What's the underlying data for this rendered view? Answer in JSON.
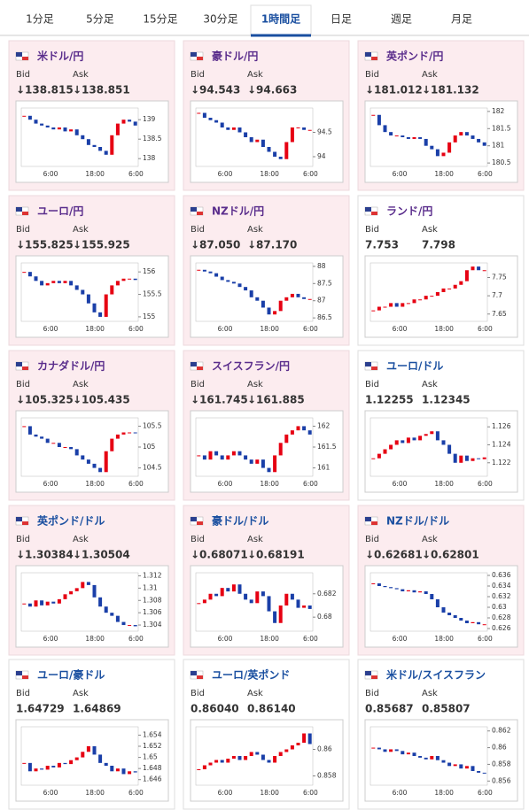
{
  "tabs": [
    "1分足",
    "5分足",
    "15分足",
    "30分足",
    "1時間足",
    "日足",
    "週足",
    "月足"
  ],
  "active_tab": 4,
  "labels": {
    "bid": "Bid",
    "ask": "Ask"
  },
  "cards": [
    {
      "name": "米ドル/円",
      "name_color": "#5a2d8c",
      "highlight": true,
      "bid": "↓138.815",
      "ask": "↓138.851",
      "chart": {
        "ylim": [
          137.8,
          139.3
        ],
        "yticks": [
          138,
          138.5,
          139
        ],
        "xlabels": [
          "6:00",
          "18:00",
          "6:00"
        ],
        "values": [
          139.1,
          139.0,
          138.9,
          138.85,
          138.8,
          138.75,
          138.8,
          138.7,
          138.75,
          138.6,
          138.5,
          138.35,
          138.3,
          138.2,
          138.1,
          138.6,
          138.9,
          139.0,
          138.95,
          138.85
        ]
      }
    },
    {
      "name": "豪ドル/円",
      "name_color": "#5a2d8c",
      "highlight": true,
      "bid": "↓94.543",
      "ask": "↓94.663",
      "chart": {
        "ylim": [
          93.8,
          95.0
        ],
        "yticks": [
          94,
          94.5
        ],
        "xlabels": [
          "6:00",
          "18:00",
          "6:00"
        ],
        "values": [
          94.9,
          94.8,
          94.75,
          94.7,
          94.6,
          94.55,
          94.6,
          94.5,
          94.4,
          94.3,
          94.35,
          94.2,
          94.1,
          94.0,
          93.95,
          94.3,
          94.6,
          94.6,
          94.55,
          94.55
        ]
      }
    },
    {
      "name": "英ポンド/円",
      "name_color": "#5a2d8c",
      "highlight": true,
      "bid": "↓181.012",
      "ask": "↓181.132",
      "chart": {
        "ylim": [
          180.4,
          182.1
        ],
        "yticks": [
          180.5,
          181,
          181.5,
          182
        ],
        "xlabels": [
          "6:00",
          "18:00",
          "6:00"
        ],
        "values": [
          181.9,
          181.6,
          181.4,
          181.3,
          181.3,
          181.25,
          181.2,
          181.25,
          181.2,
          181.0,
          180.9,
          180.7,
          180.8,
          181.1,
          181.3,
          181.4,
          181.3,
          181.2,
          181.1,
          181.0
        ]
      }
    },
    {
      "name": "ユーロ/円",
      "name_color": "#5a2d8c",
      "highlight": true,
      "bid": "↓155.825",
      "ask": "↓155.925",
      "chart": {
        "ylim": [
          154.9,
          156.2
        ],
        "yticks": [
          155,
          155.5,
          156
        ],
        "xlabels": [
          "6:00",
          "18:00",
          "6:00"
        ],
        "values": [
          156.0,
          155.9,
          155.8,
          155.7,
          155.75,
          155.8,
          155.75,
          155.8,
          155.7,
          155.6,
          155.5,
          155.3,
          155.1,
          155.0,
          155.5,
          155.7,
          155.8,
          155.85,
          155.85,
          155.82
        ]
      }
    },
    {
      "name": "NZドル/円",
      "name_color": "#5a2d8c",
      "highlight": true,
      "bid": "↓87.050",
      "ask": "↓87.170",
      "chart": {
        "ylim": [
          86.4,
          88.1
        ],
        "yticks": [
          86.5,
          87,
          87.5,
          88
        ],
        "xlabels": [
          "6:00",
          "18:00",
          "6:00"
        ],
        "values": [
          87.9,
          87.85,
          87.8,
          87.7,
          87.6,
          87.55,
          87.5,
          87.4,
          87.3,
          87.1,
          87.0,
          86.8,
          86.6,
          86.7,
          87.0,
          87.1,
          87.2,
          87.1,
          87.05,
          87.05
        ]
      }
    },
    {
      "name": "ランド/円",
      "name_color": "#5a2d8c",
      "highlight": false,
      "bid": "7.753",
      "ask": "7.798",
      "chart": {
        "ylim": [
          7.63,
          7.79
        ],
        "yticks": [
          7.65,
          7.7,
          7.75
        ],
        "xlabels": [
          "6:00",
          "18:00",
          "6:00"
        ],
        "values": [
          7.66,
          7.67,
          7.67,
          7.68,
          7.67,
          7.68,
          7.68,
          7.69,
          7.69,
          7.7,
          7.7,
          7.71,
          7.72,
          7.72,
          7.73,
          7.74,
          7.77,
          7.78,
          7.77,
          7.77
        ]
      }
    },
    {
      "name": "カナダドル/円",
      "name_color": "#5a2d8c",
      "highlight": true,
      "bid": "↓105.325",
      "ask": "↓105.435",
      "chart": {
        "ylim": [
          104.3,
          105.7
        ],
        "yticks": [
          104.5,
          105,
          105.5
        ],
        "xlabels": [
          "6:00",
          "18:00",
          "6:00"
        ],
        "values": [
          105.5,
          105.3,
          105.25,
          105.2,
          105.1,
          105.1,
          105.0,
          105.0,
          104.95,
          104.8,
          104.7,
          104.6,
          104.5,
          104.4,
          104.9,
          105.2,
          105.3,
          105.35,
          105.35,
          105.33
        ]
      }
    },
    {
      "name": "スイスフラン/円",
      "name_color": "#5a2d8c",
      "highlight": true,
      "bid": "↓161.745",
      "ask": "↓161.885",
      "chart": {
        "ylim": [
          160.8,
          162.2
        ],
        "yticks": [
          161,
          161.5,
          162
        ],
        "xlabels": [
          "6:00",
          "18:00",
          "6:00"
        ],
        "values": [
          161.3,
          161.2,
          161.4,
          161.3,
          161.2,
          161.3,
          161.4,
          161.3,
          161.2,
          161.1,
          161.2,
          161.0,
          160.9,
          161.3,
          161.6,
          161.8,
          161.9,
          162.0,
          161.9,
          161.8
        ]
      }
    },
    {
      "name": "ユーロ/ドル",
      "name_color": "#1a4fa0",
      "highlight": false,
      "bid": "1.12255",
      "ask": "1.12345",
      "chart": {
        "ylim": [
          1.1205,
          1.127
        ],
        "yticks": [
          1.122,
          1.124,
          1.126
        ],
        "xlabels": [
          "6:00",
          "18:00",
          "6:00"
        ],
        "values": [
          1.1225,
          1.123,
          1.1235,
          1.124,
          1.1245,
          1.1242,
          1.1248,
          1.1245,
          1.125,
          1.1252,
          1.1255,
          1.1245,
          1.124,
          1.123,
          1.122,
          1.1228,
          1.1222,
          1.1225,
          1.1224,
          1.1226
        ]
      }
    },
    {
      "name": "英ポンド/ドル",
      "name_color": "#1a4fa0",
      "highlight": true,
      "bid": "↓1.30384",
      "ask": "↓1.30504",
      "chart": {
        "ylim": [
          1.303,
          1.3125
        ],
        "yticks": [
          1.304,
          1.306,
          1.308,
          1.31,
          1.312
        ],
        "xlabels": [
          "6:00",
          "18:00",
          "6:00"
        ],
        "values": [
          1.3075,
          1.307,
          1.308,
          1.3072,
          1.3078,
          1.3075,
          1.3082,
          1.309,
          1.3095,
          1.31,
          1.311,
          1.3105,
          1.3085,
          1.307,
          1.306,
          1.3055,
          1.3045,
          1.304,
          1.304,
          1.3038
        ]
      }
    },
    {
      "name": "豪ドル/ドル",
      "name_color": "#1a4fa0",
      "highlight": true,
      "bid": "↓0.68071",
      "ask": "↓0.68191",
      "chart": {
        "ylim": [
          0.6788,
          0.6838
        ],
        "yticks": [
          0.68,
          0.682
        ],
        "xlabels": [
          "6:00",
          "18:00",
          "6:00"
        ],
        "values": [
          0.6812,
          0.6815,
          0.682,
          0.6818,
          0.6825,
          0.6822,
          0.6828,
          0.682,
          0.6815,
          0.6812,
          0.6822,
          0.6818,
          0.6805,
          0.6795,
          0.681,
          0.682,
          0.6815,
          0.6808,
          0.681,
          0.6807
        ]
      }
    },
    {
      "name": "NZドル/ドル",
      "name_color": "#1a4fa0",
      "highlight": true,
      "bid": "↓0.62681",
      "ask": "↓0.62801",
      "chart": {
        "ylim": [
          0.6255,
          0.6365
        ],
        "yticks": [
          0.626,
          0.628,
          0.63,
          0.632,
          0.634,
          0.636
        ],
        "xlabels": [
          "6:00",
          "18:00",
          "6:00"
        ],
        "values": [
          0.6345,
          0.634,
          0.6338,
          0.6336,
          0.6334,
          0.633,
          0.6332,
          0.6328,
          0.633,
          0.6325,
          0.6315,
          0.63,
          0.629,
          0.6285,
          0.628,
          0.6275,
          0.627,
          0.6272,
          0.6268,
          0.6268
        ]
      }
    },
    {
      "name": "ユーロ/豪ドル",
      "name_color": "#1a4fa0",
      "highlight": false,
      "bid": "1.64729",
      "ask": "1.64869",
      "chart": {
        "ylim": [
          1.645,
          1.6555
        ],
        "yticks": [
          1.646,
          1.648,
          1.65,
          1.652,
          1.654
        ],
        "xlabels": [
          "6:00",
          "18:00",
          "6:00"
        ],
        "values": [
          1.649,
          1.6475,
          1.648,
          1.6478,
          1.6485,
          1.6482,
          1.649,
          1.6488,
          1.6495,
          1.65,
          1.651,
          1.652,
          1.6505,
          1.649,
          1.6485,
          1.6475,
          1.648,
          1.647,
          1.6475,
          1.6473
        ]
      }
    },
    {
      "name": "ユーロ/英ポンド",
      "name_color": "#1a4fa0",
      "highlight": false,
      "bid": "0.86040",
      "ask": "0.86140",
      "chart": {
        "ylim": [
          0.8573,
          0.8617
        ],
        "yticks": [
          0.858,
          0.86
        ],
        "xlabels": [
          "6:00",
          "18:00",
          "6:00"
        ],
        "values": [
          0.8585,
          0.8588,
          0.859,
          0.8592,
          0.859,
          0.8593,
          0.8595,
          0.8592,
          0.8595,
          0.8598,
          0.8596,
          0.8592,
          0.859,
          0.8595,
          0.8598,
          0.86,
          0.8603,
          0.8605,
          0.8612,
          0.8604
        ]
      }
    },
    {
      "name": "米ドル/スイスフラン",
      "name_color": "#1a4fa0",
      "highlight": false,
      "bid": "0.85687",
      "ask": "0.85807",
      "chart": {
        "ylim": [
          0.8555,
          0.8625
        ],
        "yticks": [
          0.856,
          0.858,
          0.86,
          0.862
        ],
        "xlabels": [
          "6:00",
          "18:00",
          "6:00"
        ],
        "values": [
          0.86,
          0.8598,
          0.8595,
          0.8598,
          0.8596,
          0.8592,
          0.8594,
          0.859,
          0.8588,
          0.8586,
          0.859,
          0.8585,
          0.8582,
          0.8578,
          0.858,
          0.8575,
          0.8578,
          0.8572,
          0.857,
          0.8569
        ]
      }
    }
  ]
}
